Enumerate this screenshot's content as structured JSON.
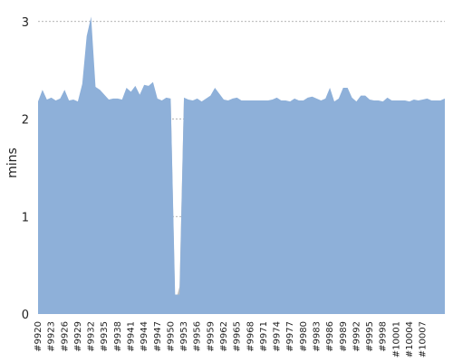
{
  "chart_data": {
    "type": "area",
    "xlabel": "",
    "ylabel": "mins",
    "ylim": [
      0,
      3.1
    ],
    "yticks": [
      0,
      1,
      2,
      3
    ],
    "grid": "horizontal-dashed",
    "colors": {
      "main": "#8eb0d9",
      "gap": "#bebebe",
      "grid": "#9a9a9a"
    },
    "x_tick_labels": [
      "#9920",
      "#9923",
      "#9926",
      "#9929",
      "#9932",
      "#9935",
      "#9938",
      "#9941",
      "#9944",
      "#9947",
      "#9950",
      "#9953",
      "#9956",
      "#9959",
      "#9962",
      "#9965",
      "#9968",
      "#9971",
      "#9974",
      "#9977",
      "#9980",
      "#9983",
      "#9986",
      "#9989",
      "#9992",
      "#9995",
      "#9998",
      "#10001",
      "#10004",
      "#10007"
    ],
    "x_first": 9920,
    "series": [
      {
        "color": "#8eb0d9",
        "values": [
          2.18,
          2.3,
          2.2,
          2.22,
          2.19,
          2.21,
          2.3,
          2.19,
          2.2,
          2.18,
          2.36,
          2.85,
          3.05,
          2.33,
          2.3,
          2.25,
          2.2,
          2.21,
          2.21,
          2.2,
          2.32,
          2.28,
          2.34,
          2.25,
          2.35,
          2.34,
          2.38,
          2.21,
          2.19,
          2.22,
          2.21,
          0.2,
          0.2,
          2.22,
          2.2,
          2.19,
          2.21,
          2.18,
          2.21,
          2.24,
          2.32,
          2.26,
          2.2,
          2.19,
          2.21,
          2.22,
          2.19,
          2.19,
          2.19,
          2.19,
          2.19,
          2.19,
          2.19,
          2.2,
          2.22,
          2.19,
          2.19,
          2.18,
          2.21,
          2.19,
          2.19,
          2.22,
          2.23,
          2.21,
          2.19,
          2.21,
          2.32,
          2.18,
          2.21,
          2.32,
          2.32,
          2.22,
          2.18,
          2.24,
          2.24,
          2.2,
          2.19,
          2.19,
          2.18,
          2.22,
          2.19,
          2.19,
          2.19,
          2.19,
          2.18,
          2.2,
          2.19,
          2.2,
          2.21,
          2.19,
          2.19,
          2.19,
          2.21
        ]
      },
      {
        "color": "#bebebe",
        "values": [
          null,
          null,
          null,
          null,
          null,
          null,
          null,
          null,
          null,
          null,
          null,
          null,
          null,
          null,
          null,
          null,
          null,
          null,
          null,
          null,
          null,
          null,
          null,
          null,
          null,
          null,
          null,
          null,
          null,
          null,
          2.21,
          0.12,
          0.28,
          2.22,
          null,
          null,
          null,
          null,
          null,
          null,
          null,
          null,
          null,
          null,
          null,
          null,
          null,
          null,
          null,
          null,
          null,
          null,
          null,
          null,
          null,
          null,
          null,
          null,
          null,
          null,
          null,
          null,
          null,
          null,
          null,
          null,
          null,
          null,
          null,
          null,
          null,
          null,
          null,
          null,
          null,
          null,
          null,
          null,
          null,
          null,
          null,
          null,
          null,
          null,
          null,
          null,
          null,
          null,
          null,
          null,
          null,
          null,
          null
        ]
      }
    ]
  }
}
